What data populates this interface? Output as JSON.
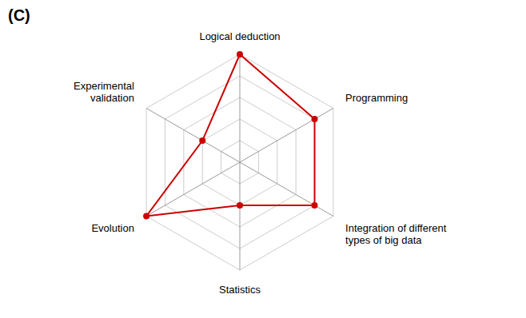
{
  "chart_data": {
    "type": "radar",
    "categories": [
      "Logical deduction",
      "Programming",
      "Integration of different\ntypes of big data",
      "Statistics",
      "Evolution",
      "Experimental\nvalidation"
    ],
    "values": [
      5,
      4,
      4,
      2,
      5,
      2
    ],
    "ylim": [
      0,
      5
    ],
    "yticks": [
      1,
      2,
      3,
      4,
      5
    ],
    "tick_labels": false,
    "grid": true,
    "color": "#cc0000",
    "marker": "circle",
    "annotations": [
      "(C)"
    ]
  }
}
